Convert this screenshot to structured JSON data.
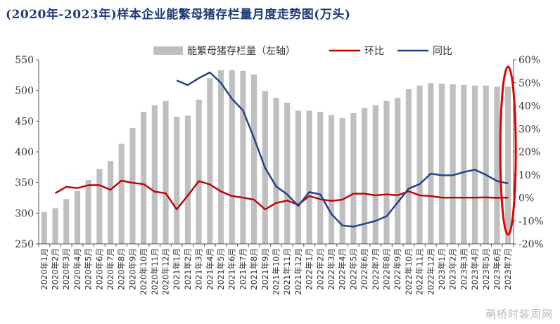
{
  "title": "(2020年-2023年)样本企业能繁母猪存栏量月度走势图(万头)",
  "watermark": "萌桥时装周网",
  "colors": {
    "bar": "#bfbfbf",
    "mom": "#c00000",
    "yoy": "#1f3f8a",
    "highlight": "#e00000",
    "axis": "#555555"
  },
  "chart_data": {
    "type": "bar",
    "categories": [
      "2020年1月",
      "2020年2月",
      "2020年3月",
      "2020年4月",
      "2020年5月",
      "2020年6月",
      "2020年7月",
      "2020年8月",
      "2020年9月",
      "2020年10月",
      "2020年11月",
      "2020年12月",
      "2021年1月",
      "2021年2月",
      "2021年3月",
      "2021年4月",
      "2021年5月",
      "2021年6月",
      "2021年7月",
      "2021年8月",
      "2021年9月",
      "2021年10月",
      "2021年11月",
      "2021年12月",
      "2022年1月",
      "2022年2月",
      "2022年3月",
      "2022年4月",
      "2022年5月",
      "2022年6月",
      "2022年7月",
      "2022年8月",
      "2022年9月",
      "2022年10月",
      "2022年11月",
      "2022年12月",
      "2023年1月",
      "2023年2月",
      "2023年3月",
      "2023年4月",
      "2023年5月",
      "2023年6月",
      "2023年7月"
    ],
    "series": [
      {
        "name": "能繁母猪存栏量（左轴）",
        "type": "bar",
        "axis": "left",
        "values": [
          302,
          308,
          323,
          336,
          354,
          372,
          385,
          413,
          439,
          465,
          476,
          483,
          457,
          459,
          485,
          520,
          533,
          533,
          532,
          526,
          499,
          488,
          480,
          467,
          467,
          465,
          460,
          455,
          463,
          471,
          476,
          483,
          488,
          502,
          508,
          512,
          511,
          510,
          509,
          508,
          508,
          506,
          506
        ]
      },
      {
        "name": "环比",
        "type": "line",
        "axis": "right",
        "values": [
          null,
          2.0,
          4.8,
          4.2,
          5.5,
          5.5,
          3.5,
          7.5,
          6.5,
          6.0,
          2.7,
          2.0,
          -5.0,
          1.0,
          7.3,
          5.8,
          2.8,
          0.8,
          0.1,
          -0.8,
          -5.0,
          -2.2,
          -1.2,
          -3.0,
          0.8,
          -0.6,
          -1.3,
          -0.8,
          1.8,
          1.8,
          1.1,
          1.5,
          1.1,
          2.8,
          1.1,
          0.8,
          0.1,
          0.1,
          0.1,
          0.1,
          0.2,
          0.0,
          0.1
        ]
      },
      {
        "name": "同比",
        "type": "line",
        "axis": "right",
        "values": [
          null,
          null,
          null,
          null,
          null,
          null,
          null,
          null,
          null,
          null,
          null,
          null,
          51,
          49,
          52,
          54.5,
          50,
          43,
          38,
          26,
          13,
          5,
          1.5,
          -3.5,
          2.5,
          1.5,
          -7,
          -12,
          -12.5,
          -11.3,
          -10,
          -8,
          -2,
          4,
          6,
          10.5,
          9.8,
          9.8,
          11.2,
          12.2,
          10,
          7.3,
          6.3
        ]
      }
    ],
    "ylim_left": [
      250,
      550
    ],
    "yticks_left": [
      250,
      300,
      350,
      400,
      450,
      500,
      550
    ],
    "ylim_right": [
      -20,
      60
    ],
    "yticks_right": [
      "-20%",
      "-10%",
      "0%",
      "10%",
      "20%",
      "30%",
      "40%",
      "50%",
      "60%"
    ],
    "legend": {
      "placement": "top-center",
      "entries": [
        "能繁母猪存栏量（左轴）",
        "环比",
        "同比"
      ]
    },
    "annotation": "red ellipse highlighting 2023年7月",
    "grid": false
  }
}
